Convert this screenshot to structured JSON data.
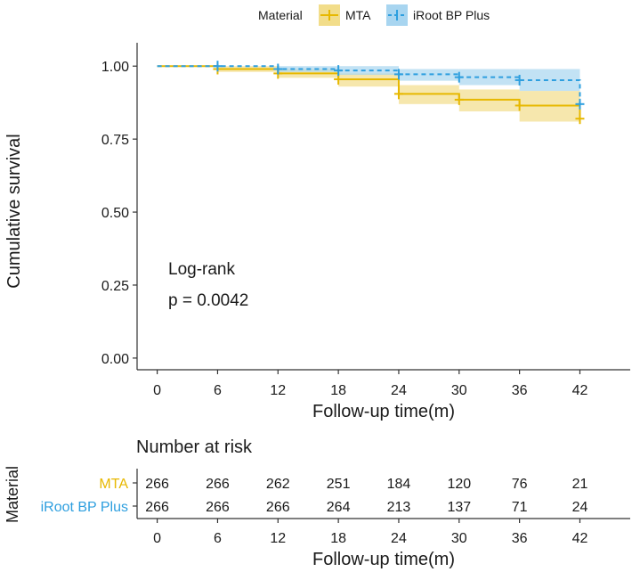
{
  "chart_data": {
    "type": "kaplan-meier",
    "ylabel": "Cumulative survival",
    "xlabel": "Follow-up time(m)",
    "xlim": [
      -2,
      47
    ],
    "ylim": [
      -0.04,
      1.08
    ],
    "x_ticks": [
      0,
      6,
      12,
      18,
      24,
      30,
      36,
      42
    ],
    "y_ticks": [
      0.0,
      0.25,
      0.5,
      0.75,
      1.0
    ],
    "y_tick_labels": [
      "0.00",
      "0.25",
      "0.50",
      "0.75",
      "1.00"
    ],
    "legend": {
      "title": "Material",
      "position": "top"
    },
    "annotation": {
      "line1": "Log-rank",
      "line2": "p = 0.0042"
    },
    "series": [
      {
        "name": "MTA",
        "color": "#E7B800",
        "band_color": "#F2DD8A",
        "line_style": "solid",
        "times": [
          0,
          6,
          12,
          18,
          24,
          30,
          36,
          42
        ],
        "survival": [
          1.0,
          0.99,
          0.975,
          0.955,
          0.905,
          0.885,
          0.865,
          0.82
        ],
        "lower": [
          1.0,
          0.98,
          0.96,
          0.93,
          0.87,
          0.845,
          0.81,
          0.81
        ],
        "upper": [
          1.0,
          1.0,
          0.99,
          0.975,
          0.935,
          0.92,
          0.915,
          0.915
        ]
      },
      {
        "name": "iRoot BP Plus",
        "color": "#2E9FDF",
        "band_color": "#A8D5F0",
        "line_style": "dashed",
        "times": [
          0,
          6,
          12,
          18,
          24,
          30,
          36,
          42
        ],
        "survival": [
          1.0,
          1.0,
          0.99,
          0.985,
          0.972,
          0.962,
          0.952,
          0.87
        ],
        "lower": [
          1.0,
          1.0,
          0.98,
          0.97,
          0.95,
          0.935,
          0.915,
          0.915
        ],
        "upper": [
          1.0,
          1.0,
          1.0,
          1.0,
          0.99,
          0.99,
          0.99,
          0.99
        ]
      }
    ],
    "risk_table": {
      "title": "Number at risk",
      "ylabel": "Material",
      "xlabel": "Follow-up time(m)",
      "rows": [
        {
          "name": "MTA",
          "values": [
            266,
            266,
            262,
            251,
            184,
            120,
            76,
            21
          ]
        },
        {
          "name": "iRoot BP Plus",
          "values": [
            266,
            266,
            266,
            264,
            213,
            137,
            71,
            24
          ]
        }
      ]
    }
  }
}
